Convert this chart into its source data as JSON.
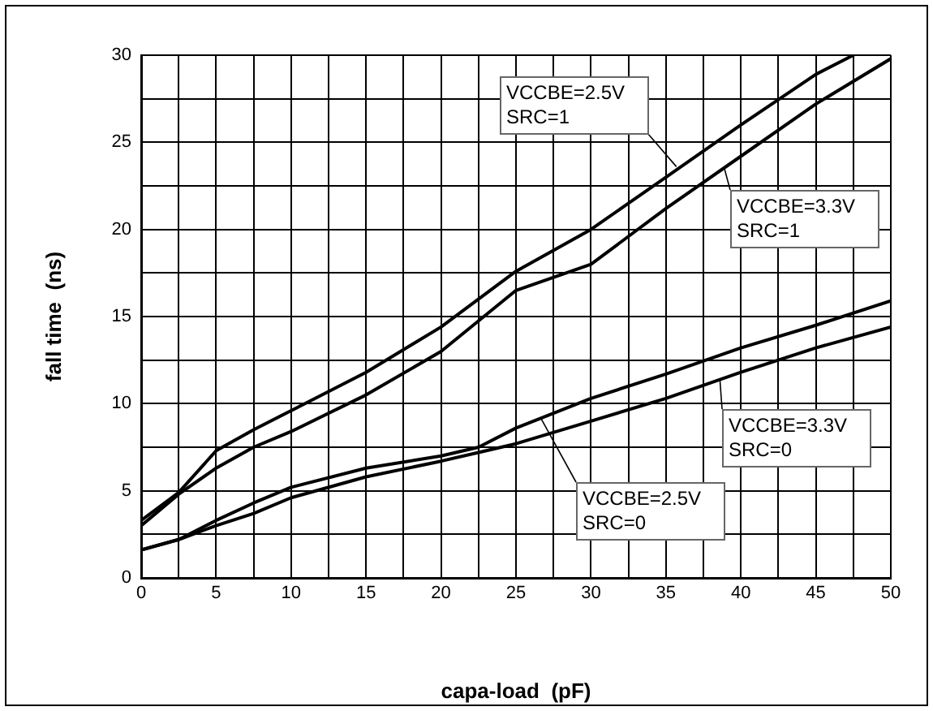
{
  "chart_data": {
    "type": "line",
    "xlabel": "capa-load  (pF)",
    "ylabel": "fall time  (ns)",
    "xlim": [
      0,
      50
    ],
    "ylim": [
      0,
      30
    ],
    "xticks": [
      0,
      {
        "value": 2.5,
        "label": null
      },
      5,
      {
        "value": 7.5,
        "label": null
      },
      10,
      {
        "value": 12.5,
        "label": null
      },
      15,
      {
        "value": 17.5,
        "label": null
      },
      20,
      {
        "value": 22.5,
        "label": null
      },
      25,
      {
        "value": 27.5,
        "label": null
      },
      30,
      {
        "value": 32.5,
        "label": null
      },
      35,
      {
        "value": 37.5,
        "label": null
      },
      40,
      {
        "value": 42.5,
        "label": null
      },
      45,
      {
        "value": 47.5,
        "label": null
      },
      50
    ],
    "yticks": [
      0,
      {
        "value": 2.5,
        "label": null
      },
      5,
      {
        "value": 7.5,
        "label": null
      },
      10,
      {
        "value": 12.5,
        "label": null
      },
      15,
      {
        "value": 17.5,
        "label": null
      },
      20,
      {
        "value": 22.5,
        "label": null
      },
      25,
      {
        "value": 27.5,
        "label": null
      },
      30
    ],
    "grid": true,
    "marker": "none",
    "line_style": "solid",
    "annotations": [
      {
        "text": "VCCBE=2.5V SRC=1",
        "x": 35.7,
        "y": 23.6
      },
      {
        "text": "VCCBE=3.3V SRC=1",
        "x": 38.9,
        "y": 23.5
      },
      {
        "text": "VCCBE=2.5V SRC=0",
        "x": 26.7,
        "y": 9.1
      },
      {
        "text": "VCCBE=3.3V SRC=0",
        "x": 38.6,
        "y": 11.4
      }
    ],
    "series": [
      {
        "color": "#000000",
        "x": [
          0,
          2.5,
          5,
          7.5,
          10,
          15,
          20,
          25,
          30,
          35,
          40,
          45,
          47.5
        ],
        "values": [
          3.3,
          4.9,
          7.3,
          8.5,
          9.6,
          11.8,
          14.4,
          17.6,
          20.0,
          23.0,
          26.0,
          28.9,
          30
        ]
      },
      {
        "color": "#000000",
        "x": [
          0,
          2.5,
          5,
          7.5,
          10,
          15,
          20,
          25,
          30,
          35,
          40,
          45,
          50
        ],
        "values": [
          3.0,
          4.8,
          6.3,
          7.5,
          8.4,
          10.5,
          13.0,
          16.5,
          18.0,
          21.2,
          24.2,
          27.2,
          29.8
        ]
      },
      {
        "color": "#000000",
        "x": [
          0,
          2.5,
          5,
          7.5,
          10,
          15,
          20,
          22.5,
          25,
          30,
          35,
          40,
          45,
          50
        ],
        "values": [
          1.6,
          2.2,
          3.3,
          4.3,
          5.2,
          6.3,
          7.0,
          7.5,
          8.6,
          10.3,
          11.7,
          13.2,
          14.5,
          15.9
        ]
      },
      {
        "color": "#000000",
        "x": [
          0,
          2.5,
          5,
          7.5,
          10,
          15,
          20,
          22.5,
          25,
          30,
          35,
          40,
          45,
          50
        ],
        "values": [
          1.6,
          2.2,
          3.0,
          3.7,
          4.6,
          5.8,
          6.7,
          7.2,
          7.7,
          9.0,
          10.3,
          11.8,
          13.2,
          14.4
        ]
      }
    ]
  }
}
